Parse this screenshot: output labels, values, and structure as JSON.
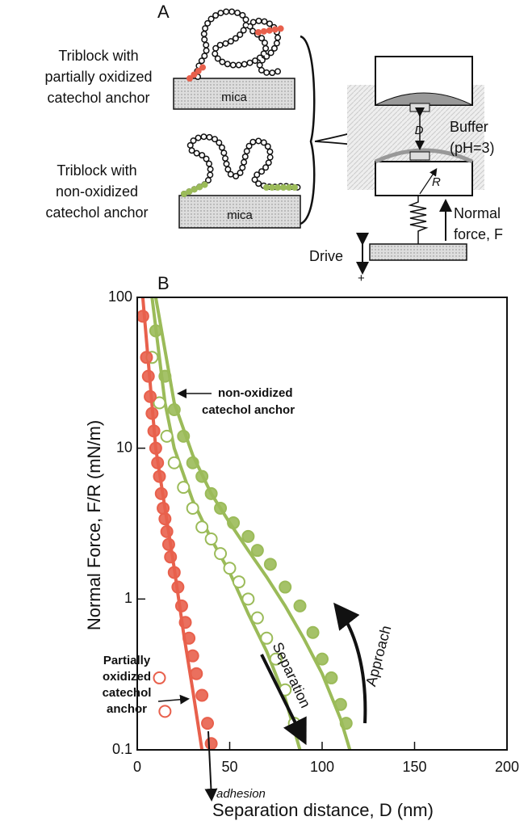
{
  "panel_a": {
    "label": "A",
    "top_block": {
      "lines": [
        "Triblock with",
        "partially oxidized",
        "catechol anchor"
      ],
      "substrate": "mica"
    },
    "bottom_block": {
      "lines": [
        "Triblock with",
        "non-oxidized",
        "catechol anchor"
      ],
      "substrate": "mica"
    },
    "apparatus": {
      "gap": "D",
      "radius": "R",
      "buffer": [
        "Buffer",
        "(pH=3)"
      ],
      "force": [
        "Normal",
        "force, F"
      ],
      "drive": "Drive",
      "minus": "-",
      "plus": "+"
    }
  },
  "chart_data": {
    "type": "scatter",
    "panel_label": "B",
    "xlabel": "Separation distance, D (nm)",
    "ylabel": "Normal Force, F/R (mN/m)",
    "xlim": [
      0,
      200
    ],
    "xticks": [
      0,
      50,
      100,
      150,
      200
    ],
    "ylim": [
      0.1,
      100
    ],
    "yticks": [
      0.1,
      1,
      10,
      100
    ],
    "yscale": "log",
    "series": [
      {
        "color": "#9bbb59",
        "marker": "filled",
        "x": [
          10,
          15,
          20,
          25,
          30,
          35,
          40,
          45,
          52,
          60,
          65,
          72,
          80,
          88,
          95,
          100,
          105,
          110,
          113
        ],
        "values": [
          60,
          30,
          18,
          12,
          8,
          6.5,
          5,
          4,
          3.2,
          2.6,
          2.1,
          1.7,
          1.2,
          0.9,
          0.6,
          0.4,
          0.3,
          0.2,
          0.15
        ]
      },
      {
        "color": "#9bbb59",
        "marker": "open",
        "x": [
          8,
          12,
          16,
          20,
          25,
          30,
          35,
          40,
          45,
          50,
          55,
          60,
          65,
          70,
          75,
          80,
          85
        ],
        "values": [
          40,
          20,
          12,
          8,
          5.5,
          4,
          3,
          2.5,
          2,
          1.6,
          1.3,
          1,
          0.75,
          0.55,
          0.4,
          0.25,
          0.15
        ]
      },
      {
        "color": "#e8604c",
        "marker": "filled",
        "x": [
          3,
          5,
          6,
          7,
          8,
          9,
          10,
          11,
          12,
          13,
          14,
          15,
          16,
          17,
          18,
          20,
          22,
          24,
          26,
          28,
          30,
          32,
          35,
          38,
          40
        ],
        "values": [
          75,
          40,
          30,
          22,
          17,
          13,
          10,
          8,
          6.5,
          5,
          4,
          3.4,
          2.8,
          2.3,
          1.9,
          1.5,
          1.2,
          0.9,
          0.7,
          0.55,
          0.42,
          0.32,
          0.23,
          0.15,
          0.11
        ]
      },
      {
        "color": "#e8604c",
        "marker": "open",
        "x": [
          12,
          15
        ],
        "values": [
          0.3,
          0.18
        ]
      },
      {
        "color": "#9bbb59",
        "marker": "line",
        "x": [
          10,
          20,
          30,
          40,
          50,
          60,
          70,
          80,
          90,
          100,
          110,
          115
        ],
        "values": [
          100,
          20,
          9,
          5,
          3.2,
          2.1,
          1.4,
          0.9,
          0.55,
          0.32,
          0.16,
          0.1
        ]
      },
      {
        "color": "#9bbb59",
        "marker": "line",
        "x": [
          8,
          15,
          20,
          30,
          40,
          50,
          60,
          70,
          80,
          88
        ],
        "values": [
          100,
          20,
          10,
          4.5,
          2.5,
          1.5,
          0.8,
          0.45,
          0.22,
          0.1
        ]
      },
      {
        "color": "#e8604c",
        "marker": "line",
        "x": [
          3,
          10,
          15,
          20,
          25,
          30,
          35
        ],
        "values": [
          100,
          10,
          4,
          1.6,
          0.6,
          0.25,
          0.1
        ]
      }
    ],
    "annotations": {
      "non_oxidized": [
        "non-oxidized",
        "catechol anchor"
      ],
      "partially_oxidized": [
        "Partially",
        "oxidized",
        "catechol",
        "anchor"
      ],
      "separation": "Separation",
      "approach": "Approach",
      "adhesion": "adhesion"
    }
  }
}
